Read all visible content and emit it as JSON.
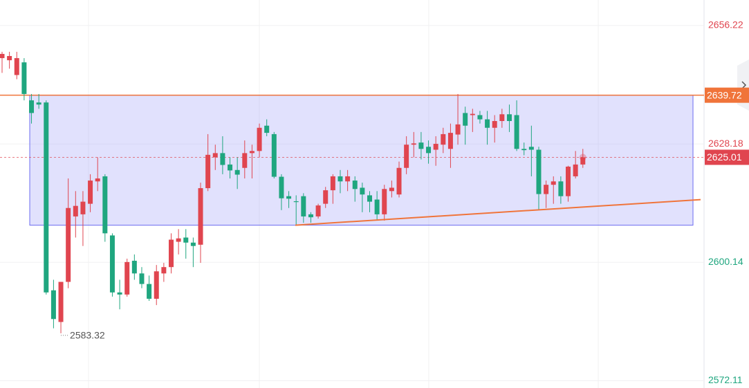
{
  "chart_data": {
    "type": "candlestick",
    "ylim": [
      2570.36,
      2662.27
    ],
    "yticks": [
      2656.22,
      2628.18,
      2600.14,
      2572.11
    ],
    "grid": true,
    "up_color": "#e0454f",
    "down_color": "#1fa67f",
    "open": [
      2648.5,
      2648,
      2644.5,
      2647.5,
      2638.5,
      2638,
      2638,
      2593.5,
      2586,
      2595.5,
      2611,
      2611.5,
      2614,
      2619.3,
      2620.5,
      2606.5,
      2593,
      2592.5,
      2600.5,
      2597.5,
      2595,
      2591.5,
      2597.5,
      2599,
      2605,
      2606,
      2604.8,
      2604.3,
      2617.7,
      2625,
      2626,
      2623.3,
      2622,
      2622.5,
      2626,
      2626.5,
      2632.5,
      2630.5,
      2620.4,
      2615.8,
      2614.6,
      2615.8,
      2611.5,
      2611,
      2614,
      2617.2,
      2620.5,
      2619.3,
      2619.5,
      2617.8,
      2616,
      2615,
      2611.5,
      2617,
      2616.2,
      2622.5,
      2628,
      2628.5,
      2627.5,
      2626.8,
      2628,
      2627,
      2630.4,
      2635.5,
      2635,
      2635,
      2634,
      2632,
      2633.6,
      2635.2,
      2635,
      2627,
      2627.5,
      2626.8,
      2616.3,
      2618.5,
      2619.3,
      2615.8,
      2620.5,
      2623.3
    ],
    "high": [
      2650,
      2650,
      2650,
      2648.5,
      2640,
      2640,
      2638.5,
      2596,
      2595.5,
      2620,
      2617,
      2617,
      2621,
      2625,
      2621,
      2607,
      2596,
      2601,
      2602,
      2599,
      2597,
      2599.5,
      2600,
      2607,
      2608,
      2608,
      2606,
      2619,
      2630.5,
      2628,
      2630,
      2625,
      2625,
      2629,
      2628,
      2633,
      2634,
      2631,
      2621,
      2617,
      2616,
      2616.5,
      2612,
      2614,
      2618,
      2621,
      2622,
      2622,
      2620.5,
      2619,
      2617,
      2617,
      2618.5,
      2619.5,
      2624,
      2630,
      2631,
      2631,
      2629,
      2630,
      2632,
      2633,
      2640,
      2637,
      2636.5,
      2636,
      2636,
      2635,
      2636.5,
      2637.5,
      2638.5,
      2628.5,
      2632.5,
      2627.5,
      2619.5,
      2620.5,
      2620.5,
      2623,
      2626.5,
      2627
    ],
    "low": [
      2645,
      2646,
      2643.5,
      2638.5,
      2633,
      2636.5,
      2592.5,
      2584.5,
      2583.32,
      2594,
      2606,
      2604,
      2612,
      2617,
      2605,
      2592,
      2589,
      2592,
      2596,
      2594,
      2591,
      2590,
      2595.5,
      2597.5,
      2602,
      2601,
      2599,
      2600,
      2617,
      2622,
      2621,
      2620,
      2617.5,
      2620,
      2620,
      2625,
      2630,
      2620,
      2612.5,
      2613,
      2608.93,
      2609.5,
      2609.5,
      2610.5,
      2613,
      2614,
      2616.5,
      2617,
      2614.5,
      2612,
      2612,
      2610,
      2610,
      2615.5,
      2615.5,
      2621,
      2625,
      2624.5,
      2623.5,
      2623,
      2626,
      2622.5,
      2628,
      2628,
      2631,
      2633,
      2628,
      2628.5,
      2632,
      2631,
      2626.5,
      2625.5,
      2620.5,
      2612.5,
      2613,
      2614,
      2614,
      2614.5,
      2620,
      2622.5
    ],
    "close": [
      2649.5,
      2649,
      2648.5,
      2640,
      2635.5,
      2637.5,
      2593,
      2586.7,
      2595.5,
      2613,
      2613.5,
      2614.5,
      2619.5,
      2620,
      2607,
      2593,
      2592.5,
      2600.2,
      2597.5,
      2595,
      2591.5,
      2598,
      2599,
      2605.5,
      2605.8,
      2604.8,
      2604,
      2617.7,
      2625.6,
      2626,
      2623.2,
      2621.9,
      2620.9,
      2626,
      2626.5,
      2632,
      2630.8,
      2620.4,
      2615.3,
      2615.2,
      2614.4,
      2611,
      2610.8,
      2613.6,
      2617.2,
      2620.5,
      2619.3,
      2620.5,
      2617.5,
      2616.2,
      2614.5,
      2611.5,
      2617.5,
      2617.8,
      2622.5,
      2628,
      2628.3,
      2627,
      2626,
      2628.2,
      2630.5,
      2630.8,
      2632.8,
      2632.5,
      2635.3,
      2634,
      2632,
      2633.6,
      2635.2,
      2633.6,
      2627,
      2626.7,
      2626.8,
      2616.3,
      2618.5,
      2619.3,
      2615.8,
      2622.8,
      2623.3,
      2625.01
    ],
    "box": {
      "top": 2639.72,
      "bottom": 2608.93,
      "color": "#6b6bf0"
    },
    "trendline": {
      "start": 2608.93,
      "end": 2614.98,
      "color": "#f0743a"
    }
  }
}
